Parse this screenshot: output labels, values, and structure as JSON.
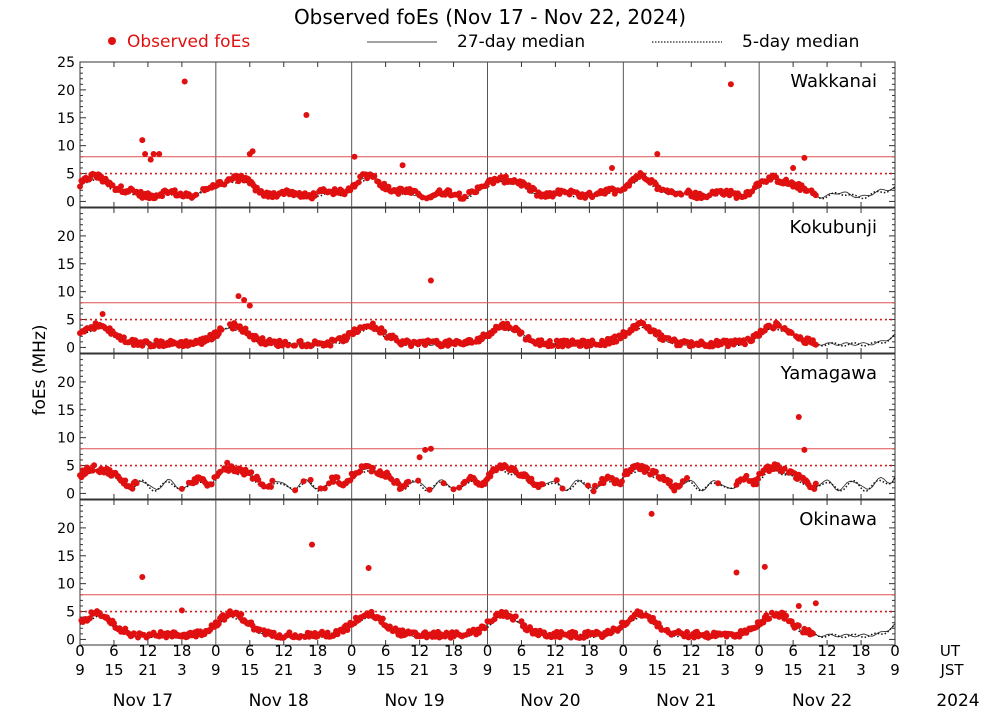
{
  "chart_data": {
    "type": "scatter",
    "title": "Observed foEs (Nov 17 - Nov 22, 2024)",
    "ylabel": "foEs (MHz)",
    "ylim": [
      -1,
      25
    ],
    "yticks": [
      0,
      5,
      10,
      15,
      20,
      25
    ],
    "legend": {
      "observed": "Observed foEs",
      "median27": "27-day median",
      "median5": "5-day median"
    },
    "colors": {
      "observed": "#e01010",
      "ref_line": "#e05050",
      "grid": "#555555"
    },
    "reference_lines": {
      "solid": 8,
      "dotted": 5
    },
    "x_unit_labels": {
      "ut": "UT",
      "jst": "JST"
    },
    "ut_ticks": [
      "0",
      "6",
      "12",
      "18",
      "0",
      "6",
      "12",
      "18",
      "0",
      "6",
      "12",
      "18",
      "0",
      "6",
      "12",
      "18",
      "0",
      "6",
      "12",
      "18",
      "0",
      "6",
      "12",
      "18",
      "0"
    ],
    "jst_ticks": [
      "9",
      "15",
      "21",
      "3",
      "9",
      "15",
      "21",
      "3",
      "9",
      "15",
      "21",
      "3",
      "9",
      "15",
      "21",
      "3",
      "9",
      "15",
      "21",
      "3",
      "9",
      "15",
      "21",
      "3",
      "9"
    ],
    "days": [
      "Nov 17",
      "Nov 18",
      "Nov 19",
      "Nov 20",
      "Nov 21",
      "Nov 22"
    ],
    "year": "2024",
    "observed_end_hour": 130,
    "stations": [
      {
        "name": "Wakkanai",
        "outliers": [
          [
            11,
            11
          ],
          [
            11.5,
            8.5
          ],
          [
            12.5,
            7.5
          ],
          [
            13,
            8.5
          ],
          [
            14,
            8.5
          ],
          [
            18.5,
            21.5
          ],
          [
            30,
            8.5
          ],
          [
            30.5,
            9
          ],
          [
            40,
            15.5
          ],
          [
            48.5,
            8
          ],
          [
            57,
            6.5
          ],
          [
            94,
            6
          ],
          [
            102,
            8.5
          ],
          [
            115,
            21
          ],
          [
            126,
            6
          ],
          [
            128,
            7.8
          ]
        ]
      },
      {
        "name": "Kokubunji",
        "outliers": [
          [
            28,
            9.2
          ],
          [
            29,
            8.5
          ],
          [
            30,
            7.5
          ],
          [
            62,
            12
          ],
          [
            4,
            6
          ]
        ]
      },
      {
        "name": "Yamagawa",
        "outliers": [
          [
            61,
            7.8
          ],
          [
            62,
            8
          ],
          [
            127,
            13.7
          ],
          [
            128,
            7.8
          ],
          [
            26,
            5.5
          ],
          [
            60,
            6.5
          ]
        ]
      },
      {
        "name": "Okinawa",
        "outliers": [
          [
            11,
            11.2
          ],
          [
            41,
            17
          ],
          [
            51,
            12.8
          ],
          [
            101,
            22.5
          ],
          [
            116,
            12
          ],
          [
            121,
            13
          ],
          [
            127,
            6
          ],
          [
            130,
            6.5
          ],
          [
            18,
            5.2
          ]
        ]
      }
    ]
  }
}
